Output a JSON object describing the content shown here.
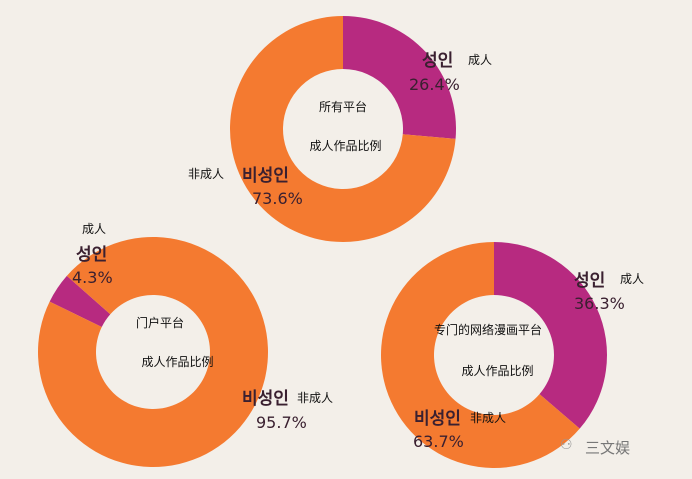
{
  "chart_data": [
    {
      "type": "pie",
      "donut": true,
      "center_title": "所有平台",
      "center_subtitle": "成人作品比例",
      "slices": [
        {
          "label_ko": "성인",
          "label_zh": "成人",
          "value": 26.4,
          "pct": "26.4%",
          "color": "#b72a80"
        },
        {
          "label_ko": "비성인",
          "label_zh": "非成人",
          "value": 73.6,
          "pct": "73.6%",
          "color": "#f47a30"
        }
      ]
    },
    {
      "type": "pie",
      "donut": true,
      "center_title": "门户平台",
      "center_subtitle": "成人作品比例",
      "slices": [
        {
          "label_ko": "성인",
          "label_zh": "成人",
          "value": 4.3,
          "pct": "4.3%",
          "color": "#b72a80"
        },
        {
          "label_ko": "비성인",
          "label_zh": "非成人",
          "value": 95.7,
          "pct": "95.7%",
          "color": "#f47a30"
        }
      ]
    },
    {
      "type": "pie",
      "donut": true,
      "center_title": "专门的网络漫画平台",
      "center_subtitle": "成人作品比例",
      "slices": [
        {
          "label_ko": "성인",
          "label_zh": "成人",
          "value": 36.3,
          "pct": "36.3%",
          "color": "#b72a80"
        },
        {
          "label_ko": "비성인",
          "label_zh": "非成人",
          "value": 63.7,
          "pct": "63.7%",
          "color": "#f47a30"
        }
      ]
    }
  ],
  "watermark": {
    "text": "三文娱",
    "icon": "wechat-icon"
  }
}
